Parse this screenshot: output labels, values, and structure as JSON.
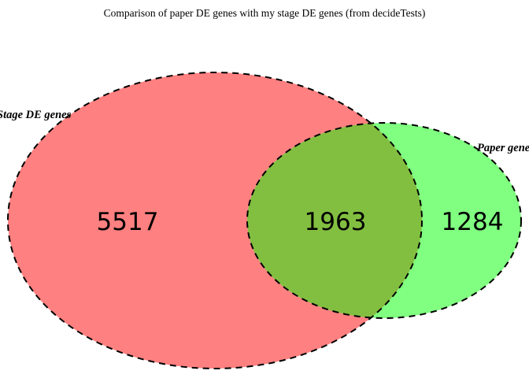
{
  "title": "Comparison of paper DE genes with my stage DE genes (from decideTests)",
  "sets": {
    "stage": {
      "label": "Stage DE genes",
      "color": "#ff8080"
    },
    "paper": {
      "label": "Paper genes",
      "color": "#80ff80"
    }
  },
  "overlap_color": "#82bf40",
  "outline_color": "#000000",
  "counts": {
    "stage_only": "5517",
    "both": "1963",
    "paper_only": "1284"
  }
}
